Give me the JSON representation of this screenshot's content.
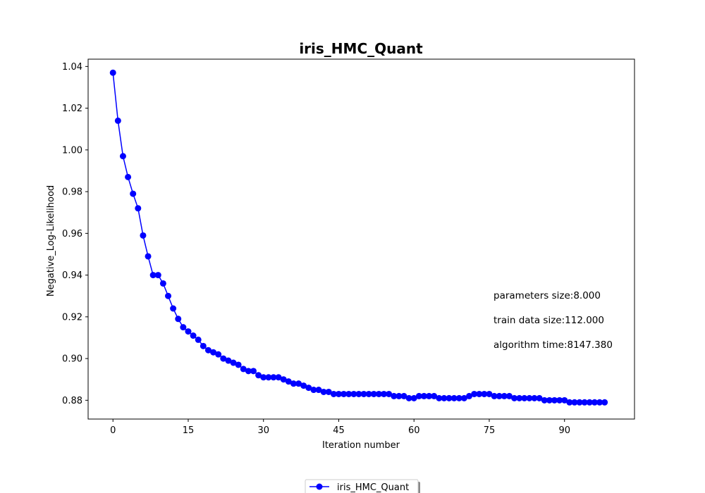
{
  "chart_data": {
    "type": "line",
    "title": "iris_HMC_Quant",
    "xlabel": "Iteration number",
    "ylabel": "Negative_Log-Likelihood",
    "xlim": [
      -4.95,
      103.95
    ],
    "ylim": [
      0.871,
      1.0435
    ],
    "xticks": [
      0,
      15,
      30,
      45,
      60,
      75,
      90
    ],
    "yticks": [
      0.88,
      0.9,
      0.92,
      0.94,
      0.96,
      0.98,
      1.0,
      1.02,
      1.04
    ],
    "ytick_labels": [
      "0.88",
      "0.90",
      "0.92",
      "0.94",
      "0.96",
      "0.98",
      "1.00",
      "1.02",
      "1.04"
    ],
    "grid": false,
    "legend_position": "below plot, center",
    "series": [
      {
        "name": "iris_HMC_Quant",
        "color": "#0000ff",
        "marker": "circle",
        "x": [
          0,
          1,
          2,
          3,
          4,
          5,
          6,
          7,
          8,
          9,
          10,
          11,
          12,
          13,
          14,
          15,
          16,
          17,
          18,
          19,
          20,
          21,
          22,
          23,
          24,
          25,
          26,
          27,
          28,
          29,
          30,
          31,
          32,
          33,
          34,
          35,
          36,
          37,
          38,
          39,
          40,
          41,
          42,
          43,
          44,
          45,
          46,
          47,
          48,
          49,
          50,
          51,
          52,
          53,
          54,
          55,
          56,
          57,
          58,
          59,
          60,
          61,
          62,
          63,
          64,
          65,
          66,
          67,
          68,
          69,
          70,
          71,
          72,
          73,
          74,
          75,
          76,
          77,
          78,
          79,
          80,
          81,
          82,
          83,
          84,
          85,
          86,
          87,
          88,
          89,
          90,
          91,
          92,
          93,
          94,
          95,
          96,
          97,
          98
        ],
        "y": [
          1.037,
          1.014,
          0.997,
          0.987,
          0.979,
          0.972,
          0.959,
          0.949,
          0.94,
          0.94,
          0.936,
          0.93,
          0.924,
          0.919,
          0.915,
          0.913,
          0.911,
          0.909,
          0.906,
          0.904,
          0.903,
          0.902,
          0.9,
          0.899,
          0.898,
          0.897,
          0.895,
          0.894,
          0.894,
          0.892,
          0.891,
          0.891,
          0.891,
          0.891,
          0.89,
          0.889,
          0.888,
          0.888,
          0.887,
          0.886,
          0.885,
          0.885,
          0.884,
          0.884,
          0.883,
          0.883,
          0.883,
          0.883,
          0.883,
          0.883,
          0.883,
          0.883,
          0.883,
          0.883,
          0.883,
          0.883,
          0.882,
          0.882,
          0.882,
          0.881,
          0.881,
          0.882,
          0.882,
          0.882,
          0.882,
          0.881,
          0.881,
          0.881,
          0.881,
          0.881,
          0.881,
          0.882,
          0.883,
          0.883,
          0.883,
          0.883,
          0.882,
          0.882,
          0.882,
          0.882,
          0.881,
          0.881,
          0.881,
          0.881,
          0.881,
          0.881,
          0.88,
          0.88,
          0.88,
          0.88,
          0.88,
          0.879,
          0.879,
          0.879,
          0.879,
          0.879,
          0.879,
          0.879,
          0.879
        ]
      }
    ],
    "annotations": [
      "parameters size:8.000",
      "train data size:112.000",
      "algorithm time:8147.380"
    ]
  }
}
